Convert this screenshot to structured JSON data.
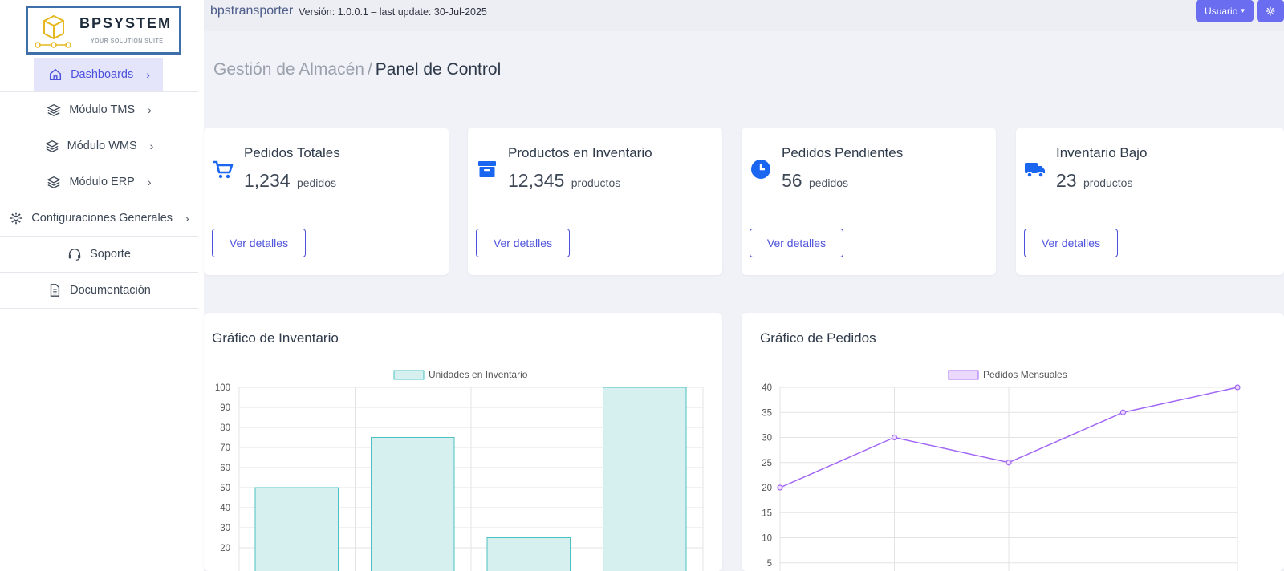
{
  "brand": {
    "name": "BPSYSTEM",
    "tagline": "YOUR SOLUTION SUITE"
  },
  "topbar": {
    "app_name": "bpstransporter",
    "version": "Versión: 1.0.0.1 – last update: 30-Jul-2025",
    "user_label": "Usuario"
  },
  "sidebar": {
    "items": [
      {
        "label": "Dashboards",
        "icon": "home-icon"
      },
      {
        "label": "Módulo TMS",
        "icon": "layers-icon"
      },
      {
        "label": "Módulo WMS",
        "icon": "layers-icon"
      },
      {
        "label": "Módulo ERP",
        "icon": "layers-icon"
      },
      {
        "label": "Configuraciones Generales",
        "icon": "gear-icon"
      },
      {
        "label": "Soporte",
        "icon": "headset-icon"
      },
      {
        "label": "Documentación",
        "icon": "document-icon"
      }
    ]
  },
  "breadcrumb": {
    "parent": "Gestión de Almacén",
    "separator": "/",
    "current": "Panel de Control"
  },
  "stats": [
    {
      "title": "Pedidos Totales",
      "value": "1,234",
      "unit": "pedidos",
      "button": "Ver detalles",
      "icon": "cart-icon"
    },
    {
      "title": "Productos en Inventario",
      "value": "12,345",
      "unit": "productos",
      "button": "Ver detalles",
      "icon": "archive-icon"
    },
    {
      "title": "Pedidos Pendientes",
      "value": "56",
      "unit": "pedidos",
      "button": "Ver detalles",
      "icon": "clock-icon"
    },
    {
      "title": "Inventario Bajo",
      "value": "23",
      "unit": "productos",
      "button": "Ver detalles",
      "icon": "truck-icon"
    }
  ],
  "colors": {
    "accent": "#4d52dc",
    "bar_fill": "#d6f0f0",
    "bar_stroke": "#4fc0c0",
    "line": "#a166f5",
    "line_fill": "#ead9fd"
  },
  "chart_data": [
    {
      "type": "bar",
      "title": "Gráfico de Inventario",
      "legend": "Unidades en Inventario",
      "values": [
        50,
        75,
        25,
        100
      ],
      "yticks": [
        20,
        30,
        40,
        50,
        60,
        70,
        80,
        90,
        100
      ],
      "ylim": [
        0,
        100
      ]
    },
    {
      "type": "line",
      "title": "Gráfico de Pedidos",
      "legend": "Pedidos Mensuales",
      "values": [
        20,
        30,
        25,
        35,
        40
      ],
      "yticks": [
        5,
        10,
        15,
        20,
        25,
        30,
        35,
        40
      ],
      "ylim": [
        0,
        40
      ]
    }
  ]
}
